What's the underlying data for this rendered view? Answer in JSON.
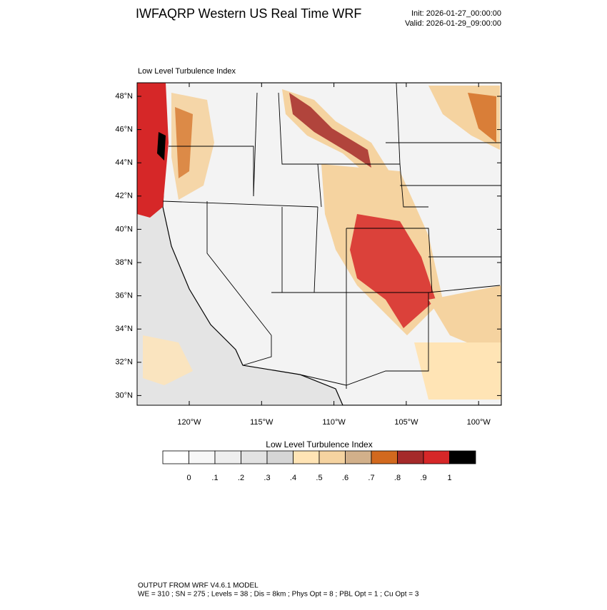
{
  "header": {
    "title": "IWFAQRP Western US Real Time WRF",
    "init": "Init: 2026-01-27_00:00:00",
    "valid": "Valid: 2026-01-29_09:00:00"
  },
  "map": {
    "label": "Low Level Turbulence Index",
    "lat_ticks": [
      "48°N",
      "46°N",
      "44°N",
      "42°N",
      "40°N",
      "38°N",
      "36°N",
      "34°N",
      "32°N",
      "30°N"
    ],
    "lon_ticks": [
      "120°W",
      "115°W",
      "110°W",
      "105°W",
      "100°W"
    ]
  },
  "colorbar": {
    "title": "Low Level Turbulence Index",
    "colors": [
      "#ffffff",
      "#f7f7f7",
      "#eeeeee",
      "#e2e2e2",
      "#d6d6d6",
      "#ffe4b5",
      "#f5d3a0",
      "#d2b08a",
      "#d2691e",
      "#a52a2a",
      "#d62728",
      "#000000"
    ],
    "labels": [
      "0",
      ".1",
      ".2",
      ".3",
      ".4",
      ".5",
      ".6",
      ".7",
      ".8",
      ".9",
      "1"
    ]
  },
  "footer": {
    "line1": "OUTPUT FROM WRF V4.6.1 MODEL",
    "line2": "WE = 310 ; SN = 275 ; Levels = 38 ; Dis = 8km ; Phys Opt = 8 ; PBL Opt = 1 ; Cu Opt = 3"
  }
}
